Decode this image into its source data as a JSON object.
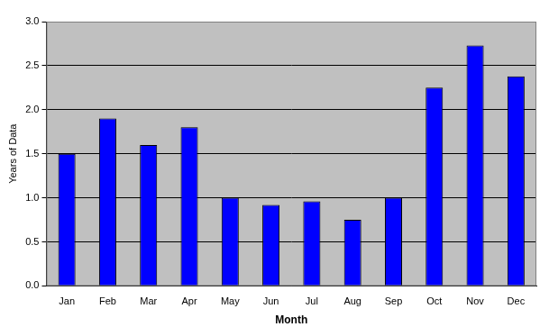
{
  "chart_data": {
    "type": "bar",
    "x_label": "Month",
    "y_label": "Years of Data",
    "categories": [
      "Jan",
      "Feb",
      "Mar",
      "Apr",
      "May",
      "Jun",
      "Jul",
      "Aug",
      "Sep",
      "Oct",
      "Nov",
      "Dec"
    ],
    "values": [
      1.5,
      1.9,
      1.6,
      1.8,
      1.0,
      0.92,
      0.96,
      0.75,
      1.0,
      2.25,
      2.73,
      2.38
    ],
    "color": "#0000ff",
    "ylim": [
      0,
      3
    ],
    "yticks": [
      {
        "value": 0,
        "label": "0.0"
      },
      0.5,
      {
        "value": 1,
        "label": "1.0"
      },
      1.5,
      {
        "value": 2,
        "label": "2.0"
      },
      2.5,
      {
        "value": 3,
        "label": "3.0"
      }
    ],
    "grid": true
  }
}
